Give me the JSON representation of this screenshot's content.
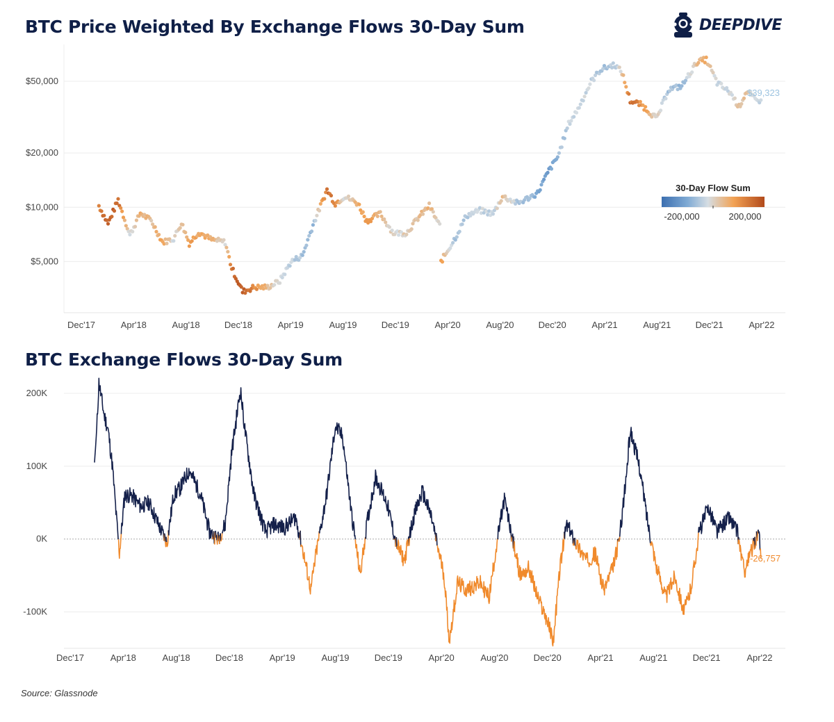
{
  "brand": {
    "name": "DEEPDIVE"
  },
  "source": "Source: Glassnode",
  "colors": {
    "title": "#0f1f47",
    "positive_flow": "#14204a",
    "negative_flow": "#f08a2c",
    "scale_low": "#3c6fb0",
    "scale_mid": "#d5dde3",
    "scale_high": "#b24a1b"
  },
  "chart_data": [
    {
      "type": "scatter",
      "title": "BTC Price Weighted By Exchange Flows 30-Day Sum",
      "y_scale": "log",
      "ylim": [
        2600,
        80000
      ],
      "y_ticks": [
        5000,
        10000,
        20000,
        50000
      ],
      "y_tick_labels": [
        "$5,000",
        "$10,000",
        "$20,000",
        "$50,000"
      ],
      "x_ticks": [
        "Dec'17",
        "Apr'18",
        "Aug'18",
        "Dec'18",
        "Apr'19",
        "Aug'19",
        "Dec'19",
        "Apr'20",
        "Aug'20",
        "Dec'20",
        "Apr'21",
        "Aug'21",
        "Dec'21",
        "Apr'22"
      ],
      "grid": true,
      "legend": {
        "title": "30-Day Flow Sum",
        "min_label": "-200,000",
        "max_label": "200,000",
        "placement": "right"
      },
      "end_label": "$39,323",
      "points": [
        [
          "2018-01-20",
          10200,
          120
        ],
        [
          "2018-02-10",
          8100,
          180
        ],
        [
          "2018-03-05",
          11000,
          150
        ],
        [
          "2018-04-01",
          7000,
          -20
        ],
        [
          "2018-04-25",
          9300,
          60
        ],
        [
          "2018-05-20",
          8400,
          30
        ],
        [
          "2018-06-15",
          6400,
          70
        ],
        [
          "2018-07-10",
          6700,
          -10
        ],
        [
          "2018-07-28",
          8200,
          40
        ],
        [
          "2018-08-15",
          6300,
          80
        ],
        [
          "2018-09-05",
          7300,
          70
        ],
        [
          "2018-10-05",
          6600,
          50
        ],
        [
          "2018-11-05",
          6400,
          -10
        ],
        [
          "2018-11-20",
          4600,
          150
        ],
        [
          "2018-12-15",
          3400,
          180
        ],
        [
          "2019-01-10",
          3600,
          120
        ],
        [
          "2019-02-10",
          3600,
          30
        ],
        [
          "2019-03-10",
          3900,
          -20
        ],
        [
          "2019-04-05",
          5000,
          -40
        ],
        [
          "2019-05-01",
          5400,
          -60
        ],
        [
          "2019-05-25",
          8000,
          -70
        ],
        [
          "2019-06-26",
          12500,
          150
        ],
        [
          "2019-07-15",
          10500,
          120
        ],
        [
          "2019-08-05",
          11500,
          -20
        ],
        [
          "2019-09-05",
          10500,
          60
        ],
        [
          "2019-09-25",
          8400,
          100
        ],
        [
          "2019-10-26",
          9200,
          40
        ],
        [
          "2019-11-25",
          7200,
          -10
        ],
        [
          "2019-12-25",
          7200,
          10
        ],
        [
          "2020-01-20",
          8700,
          30
        ],
        [
          "2020-02-15",
          10200,
          50
        ],
        [
          "2020-03-10",
          7900,
          -20
        ],
        [
          "2020-03-13",
          5000,
          80
        ],
        [
          "2020-04-15",
          6800,
          -60
        ],
        [
          "2020-05-10",
          9000,
          -50
        ],
        [
          "2020-06-10",
          9600,
          -30
        ],
        [
          "2020-07-10",
          9200,
          -40
        ],
        [
          "2020-08-01",
          11500,
          40
        ],
        [
          "2020-09-05",
          10500,
          -50
        ],
        [
          "2020-10-20",
          12000,
          -100
        ],
        [
          "2020-11-15",
          16000,
          -120
        ],
        [
          "2020-12-05",
          19000,
          -80
        ],
        [
          "2020-12-30",
          29000,
          -30
        ],
        [
          "2021-01-20",
          35000,
          -20
        ],
        [
          "2021-02-20",
          50000,
          -40
        ],
        [
          "2021-03-13",
          58000,
          -60
        ],
        [
          "2021-04-14",
          62000,
          -50
        ],
        [
          "2021-05-01",
          56000,
          10
        ],
        [
          "2021-05-20",
          39000,
          150
        ],
        [
          "2021-06-15",
          37000,
          100
        ],
        [
          "2021-07-20",
          31000,
          0
        ],
        [
          "2021-08-15",
          45000,
          -60
        ],
        [
          "2021-09-15",
          47000,
          -80
        ],
        [
          "2021-10-20",
          64000,
          40
        ],
        [
          "2021-11-10",
          66000,
          60
        ],
        [
          "2021-12-05",
          49000,
          -30
        ],
        [
          "2022-01-05",
          43000,
          -20
        ],
        [
          "2022-01-24",
          36000,
          40
        ],
        [
          "2022-02-10",
          44000,
          20
        ],
        [
          "2022-03-05",
          39000,
          -30
        ],
        [
          "2022-03-15",
          39323,
          -27
        ]
      ]
    },
    {
      "type": "line",
      "title": "BTC Exchange Flows 30-Day Sum",
      "ylim": [
        -150000,
        220000
      ],
      "y_ticks": [
        -100000,
        0,
        100000,
        200000
      ],
      "y_tick_labels": [
        "-100K",
        "0K",
        "100K",
        "200K"
      ],
      "x_ticks": [
        "Dec'17",
        "Apr'18",
        "Aug'18",
        "Dec'18",
        "Apr'19",
        "Aug'19",
        "Dec'19",
        "Apr'20",
        "Aug'20",
        "Dec'20",
        "Apr'21",
        "Aug'21",
        "Dec'21",
        "Apr'22"
      ],
      "grid": true,
      "end_label": "-26,757",
      "series": [
        {
          "points": [
            [
              "2018-01-10",
              105000
            ],
            [
              "2018-01-15",
              150000
            ],
            [
              "2018-01-20",
              215000
            ],
            [
              "2018-02-01",
              170000
            ],
            [
              "2018-02-10",
              150000
            ],
            [
              "2018-02-20",
              100000
            ],
            [
              "2018-03-01",
              30000
            ],
            [
              "2018-03-08",
              -20000
            ],
            [
              "2018-03-20",
              60000
            ],
            [
              "2018-04-05",
              60000
            ],
            [
              "2018-04-25",
              45000
            ],
            [
              "2018-05-15",
              50000
            ],
            [
              "2018-06-05",
              20000
            ],
            [
              "2018-06-25",
              -5000
            ],
            [
              "2018-07-10",
              60000
            ],
            [
              "2018-07-25",
              70000
            ],
            [
              "2018-08-15",
              95000
            ],
            [
              "2018-09-10",
              60000
            ],
            [
              "2018-09-30",
              10000
            ],
            [
              "2018-10-20",
              0
            ],
            [
              "2018-11-05",
              20000
            ],
            [
              "2018-11-20",
              120000
            ],
            [
              "2018-12-10",
              205000
            ],
            [
              "2018-12-20",
              150000
            ],
            [
              "2019-01-10",
              60000
            ],
            [
              "2019-02-05",
              10000
            ],
            [
              "2019-02-25",
              20000
            ],
            [
              "2019-03-20",
              15000
            ],
            [
              "2019-04-15",
              30000
            ],
            [
              "2019-04-30",
              -10000
            ],
            [
              "2019-05-20",
              -70000
            ],
            [
              "2019-06-01",
              -20000
            ],
            [
              "2019-06-25",
              60000
            ],
            [
              "2019-07-15",
              155000
            ],
            [
              "2019-08-01",
              140000
            ],
            [
              "2019-08-20",
              40000
            ],
            [
              "2019-09-10",
              -50000
            ],
            [
              "2019-09-25",
              20000
            ],
            [
              "2019-10-15",
              85000
            ],
            [
              "2019-11-10",
              50000
            ],
            [
              "2019-12-01",
              -5000
            ],
            [
              "2019-12-20",
              -30000
            ],
            [
              "2020-01-10",
              30000
            ],
            [
              "2020-01-30",
              65000
            ],
            [
              "2020-02-20",
              30000
            ],
            [
              "2020-03-05",
              -10000
            ],
            [
              "2020-03-20",
              -50000
            ],
            [
              "2020-04-01",
              -140000
            ],
            [
              "2020-04-20",
              -60000
            ],
            [
              "2020-05-10",
              -70000
            ],
            [
              "2020-06-10",
              -60000
            ],
            [
              "2020-07-01",
              -80000
            ],
            [
              "2020-07-20",
              0
            ],
            [
              "2020-08-05",
              55000
            ],
            [
              "2020-08-20",
              10000
            ],
            [
              "2020-09-10",
              -50000
            ],
            [
              "2020-09-30",
              -40000
            ],
            [
              "2020-10-20",
              -80000
            ],
            [
              "2020-11-10",
              -110000
            ],
            [
              "2020-11-25",
              -140000
            ],
            [
              "2020-12-10",
              -40000
            ],
            [
              "2020-12-25",
              20000
            ],
            [
              "2021-01-20",
              -10000
            ],
            [
              "2021-02-10",
              -30000
            ],
            [
              "2021-03-01",
              -20000
            ],
            [
              "2021-03-20",
              -70000
            ],
            [
              "2021-04-10",
              -40000
            ],
            [
              "2021-04-25",
              0
            ],
            [
              "2021-05-10",
              80000
            ],
            [
              "2021-05-20",
              150000
            ],
            [
              "2021-06-10",
              100000
            ],
            [
              "2021-06-30",
              20000
            ],
            [
              "2021-07-20",
              -40000
            ],
            [
              "2021-08-10",
              -80000
            ],
            [
              "2021-08-30",
              -50000
            ],
            [
              "2021-09-20",
              -100000
            ],
            [
              "2021-10-05",
              -70000
            ],
            [
              "2021-10-25",
              10000
            ],
            [
              "2021-11-15",
              45000
            ],
            [
              "2021-12-05",
              10000
            ],
            [
              "2022-01-01",
              30000
            ],
            [
              "2022-01-20",
              10000
            ],
            [
              "2022-02-05",
              -45000
            ],
            [
              "2022-02-25",
              -10000
            ],
            [
              "2022-03-10",
              10000
            ],
            [
              "2022-03-15",
              -26757
            ]
          ]
        }
      ]
    }
  ]
}
